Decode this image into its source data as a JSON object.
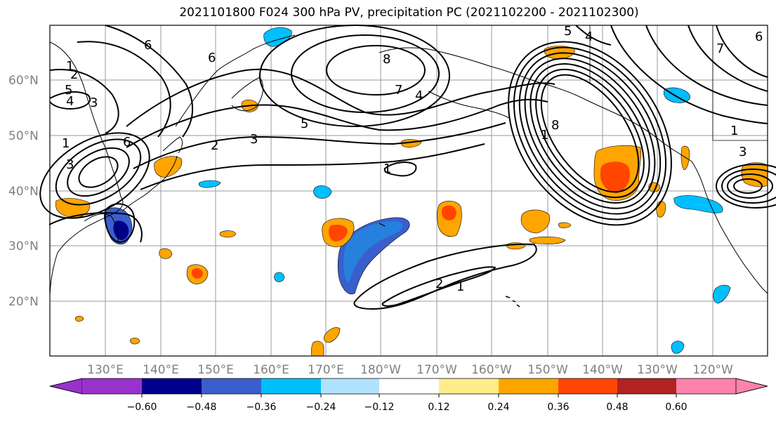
{
  "title": "2021101800 F024 300 hPa PV, precipitation PC (2021102200 - 2021102300)",
  "map": {
    "lat_labels": [
      "60°N",
      "50°N",
      "40°N",
      "30°N",
      "20°N"
    ],
    "lon_labels": [
      "130°E",
      "140°E",
      "150°E",
      "160°E",
      "170°E",
      "180°W",
      "170°W",
      "160°W",
      "150°W",
      "140°W",
      "130°W",
      "120°W"
    ],
    "contour_line_color": "#000000",
    "coastline_color": "#000000",
    "grid_color": "#9a9a9a"
  },
  "colorbar": {
    "ticks": [
      "−0.60",
      "−0.48",
      "−0.36",
      "−0.24",
      "−0.12",
      "0.12",
      "0.24",
      "0.36",
      "0.48",
      "0.60"
    ],
    "colors": [
      "#9932cc",
      "#00008b",
      "#3a5fcd",
      "#00bfff",
      "#b0e2ff",
      "#ffffff",
      "#ffec8b",
      "#ffa500",
      "#ff4500",
      "#b22222",
      "#ff82ab"
    ]
  },
  "contour_labels": {
    "pv_values": [
      "1",
      "2",
      "3",
      "4",
      "5",
      "6",
      "7",
      "8"
    ]
  }
}
